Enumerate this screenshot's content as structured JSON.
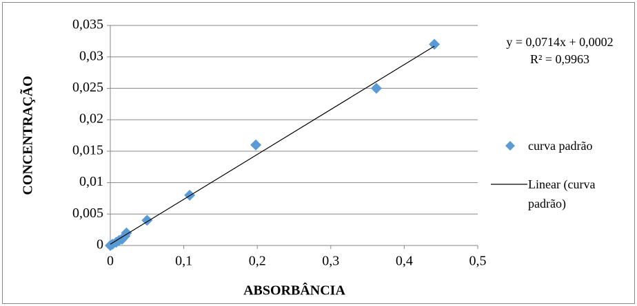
{
  "chart_data": {
    "type": "scatter",
    "x_label": "ABSORBÂNCIA",
    "y_label": "CONCENTRAÇÃO",
    "annotations": [
      "y = 0,0714x + 0,0002",
      "R² = 0,9963"
    ],
    "series": [
      {
        "name": "curva padrão",
        "color": "#5b9bd5",
        "x": [
          0,
          0.003,
          0.008,
          0.012,
          0.016,
          0.02,
          0.022,
          0.05,
          0.108,
          0.198,
          0.362,
          0.441
        ],
        "values": [
          0,
          0.0002,
          0.0005,
          0.0008,
          0.001,
          0.0015,
          0.002,
          0.004,
          0.008,
          0.016,
          0.025,
          0.032
        ]
      },
      {
        "name": "Linear (curva padrão)",
        "color": "#000000",
        "type": "line",
        "x": [
          0,
          0.441
        ],
        "values": [
          0.0002,
          0.0317
        ]
      }
    ],
    "xlim": [
      0,
      0.5
    ],
    "xticks": [
      0,
      {
        "value": 0.1,
        "label": "0,1"
      },
      {
        "value": 0.2,
        "label": "0,2"
      },
      {
        "value": 0.3,
        "label": "0,3"
      },
      {
        "value": 0.4,
        "label": "0,4"
      },
      {
        "value": 0.5,
        "label": "0,5"
      }
    ],
    "ylim": [
      0,
      0.035
    ],
    "yticks": [
      0,
      {
        "value": 0.005,
        "label": "0,005"
      },
      {
        "value": 0.01,
        "label": "0,01"
      },
      {
        "value": 0.015,
        "label": "0,015"
      },
      {
        "value": 0.02,
        "label": "0,02"
      },
      {
        "value": 0.025,
        "label": "0,025"
      },
      {
        "value": 0.03,
        "label": "0,03"
      },
      {
        "value": 0.035,
        "label": "0,035"
      }
    ],
    "grid": true
  }
}
